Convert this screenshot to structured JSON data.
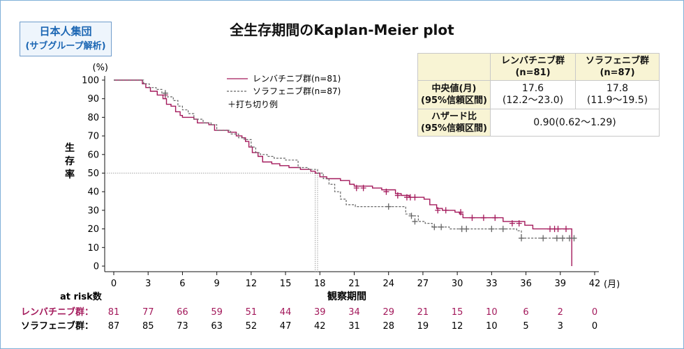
{
  "badge": {
    "line1": "日本人集団",
    "line2": "(サブグループ解析)"
  },
  "title": "全生存期間のKaplan-Meier plot",
  "table": {
    "columns": [
      "レンバチニブ群\n(n=81)",
      "ソラフェニブ群\n(n=87)"
    ],
    "median_label": "中央値(月)\n(95%信頼区間)",
    "median_values": [
      "17.6\n(12.2〜23.0)",
      "17.8\n(11.9〜19.5)"
    ],
    "hr_label": "ハザード比\n(95%信頼区間)",
    "hr_value": "0.90(0.62〜1.29)"
  },
  "legend": {
    "lenvatinib": "レンバチニブ群(n=81)",
    "sorafenib": "ソラフェニブ群(n=87)",
    "censor": "＋打ち切り例"
  },
  "risk": {
    "header": "at risk数",
    "lenvatinib_label": "レンバチニブ群：",
    "sorafenib_label": "ソラフェニブ群："
  },
  "colors": {
    "lenvatinib": "#a3195b",
    "sorafenib": "#666666",
    "table_bg": "#f8f4d4",
    "badge": "#1b66b3"
  },
  "chart_data": {
    "type": "line",
    "step": true,
    "xlabel": "観察期間",
    "xunit": "(月)",
    "ylabel": "生存率",
    "yunit": "(%)",
    "xlim": [
      0,
      42
    ],
    "ylim": [
      0,
      100
    ],
    "xticks": [
      0,
      3,
      6,
      9,
      12,
      15,
      18,
      21,
      24,
      27,
      30,
      33,
      36,
      39,
      42
    ],
    "yticks": [
      0,
      10,
      20,
      30,
      40,
      50,
      60,
      70,
      80,
      90,
      100
    ],
    "median_reference": {
      "y": 50,
      "x_lenvatinib": 17.6,
      "x_sorafenib": 17.8
    },
    "series": [
      {
        "name": "レンバチニブ群(n=81)",
        "style": "solid",
        "points": [
          [
            0,
            100
          ],
          [
            2.5,
            98
          ],
          [
            2.8,
            96
          ],
          [
            3.2,
            94
          ],
          [
            3.8,
            92
          ],
          [
            4.3,
            90
          ],
          [
            4.6,
            87
          ],
          [
            5.0,
            86
          ],
          [
            5.4,
            83
          ],
          [
            5.8,
            81
          ],
          [
            6.0,
            80
          ],
          [
            7.0,
            79
          ],
          [
            7.3,
            77
          ],
          [
            8.3,
            76
          ],
          [
            8.8,
            73
          ],
          [
            10.0,
            72
          ],
          [
            10.7,
            70
          ],
          [
            11.2,
            69
          ],
          [
            11.5,
            67
          ],
          [
            11.8,
            64
          ],
          [
            12.1,
            61
          ],
          [
            12.6,
            59
          ],
          [
            13.0,
            56
          ],
          [
            13.8,
            55
          ],
          [
            14.5,
            54
          ],
          [
            15.3,
            53
          ],
          [
            16.3,
            52
          ],
          [
            17.2,
            51
          ],
          [
            17.6,
            50
          ],
          [
            18.0,
            48
          ],
          [
            18.6,
            47
          ],
          [
            19.8,
            46
          ],
          [
            20.6,
            44
          ],
          [
            21.0,
            43
          ],
          [
            22.6,
            42
          ],
          [
            23.4,
            41
          ],
          [
            24.6,
            39
          ],
          [
            25.1,
            38
          ],
          [
            25.8,
            37
          ],
          [
            27.1,
            36
          ],
          [
            27.6,
            33
          ],
          [
            28.2,
            31
          ],
          [
            28.7,
            30
          ],
          [
            29.8,
            29
          ],
          [
            30.2,
            28
          ],
          [
            30.5,
            26
          ],
          [
            31.5,
            26
          ],
          [
            32.8,
            26
          ],
          [
            33.6,
            26
          ],
          [
            34.0,
            24
          ],
          [
            35.9,
            22
          ],
          [
            36.6,
            20
          ],
          [
            38.9,
            20
          ],
          [
            40.0,
            20
          ],
          [
            40.0,
            0
          ]
        ],
        "censored": [
          [
            4.5,
            92
          ],
          [
            21.2,
            42
          ],
          [
            21.8,
            42
          ],
          [
            23.8,
            40
          ],
          [
            24.8,
            38
          ],
          [
            25.6,
            37
          ],
          [
            25.9,
            37
          ],
          [
            26.3,
            37
          ],
          [
            28.3,
            30
          ],
          [
            29.0,
            30
          ],
          [
            30.3,
            29
          ],
          [
            31.3,
            26
          ],
          [
            32.3,
            26
          ],
          [
            33.3,
            26
          ],
          [
            34.8,
            23
          ],
          [
            35.4,
            23
          ],
          [
            38.1,
            20
          ],
          [
            38.5,
            20
          ],
          [
            38.8,
            20
          ],
          [
            39.5,
            20
          ]
        ]
      },
      {
        "name": "ソラフェニブ群(n=87)",
        "style": "dashed",
        "points": [
          [
            0,
            100
          ],
          [
            2.6,
            98
          ],
          [
            3.1,
            96
          ],
          [
            3.7,
            95
          ],
          [
            4.2,
            93
          ],
          [
            4.5,
            91
          ],
          [
            5.2,
            89
          ],
          [
            5.6,
            86
          ],
          [
            6.0,
            84
          ],
          [
            6.5,
            82
          ],
          [
            7.0,
            79
          ],
          [
            7.8,
            77
          ],
          [
            8.5,
            76
          ],
          [
            9.0,
            73
          ],
          [
            10.2,
            71
          ],
          [
            10.9,
            69
          ],
          [
            11.4,
            68
          ],
          [
            12.0,
            64
          ],
          [
            12.4,
            61
          ],
          [
            12.8,
            60
          ],
          [
            13.4,
            59
          ],
          [
            14.0,
            58
          ],
          [
            15.0,
            57
          ],
          [
            16.1,
            53
          ],
          [
            17.0,
            52
          ],
          [
            17.8,
            50
          ],
          [
            18.3,
            47
          ],
          [
            18.8,
            44
          ],
          [
            19.3,
            40
          ],
          [
            19.8,
            36
          ],
          [
            20.3,
            33
          ],
          [
            21.1,
            32
          ],
          [
            22.6,
            32
          ],
          [
            23.5,
            32
          ],
          [
            24.6,
            32
          ],
          [
            25.5,
            28
          ],
          [
            26.0,
            27
          ],
          [
            26.6,
            24
          ],
          [
            27.2,
            23
          ],
          [
            27.8,
            21
          ],
          [
            28.6,
            21
          ],
          [
            29.3,
            20
          ],
          [
            30.4,
            20
          ],
          [
            31.5,
            20
          ],
          [
            32.5,
            20
          ],
          [
            33.6,
            20
          ],
          [
            34.7,
            20
          ],
          [
            35.2,
            19
          ],
          [
            35.6,
            15
          ],
          [
            39.5,
            15
          ],
          [
            40.0,
            15
          ]
        ],
        "censored": [
          [
            4.5,
            93
          ],
          [
            24.0,
            32
          ],
          [
            26.0,
            27
          ],
          [
            26.3,
            24
          ],
          [
            28.0,
            21
          ],
          [
            28.6,
            21
          ],
          [
            30.4,
            20
          ],
          [
            30.8,
            20
          ],
          [
            33.0,
            20
          ],
          [
            34.0,
            20
          ],
          [
            35.6,
            15
          ],
          [
            37.5,
            15
          ],
          [
            38.7,
            15
          ],
          [
            39.2,
            15
          ],
          [
            39.8,
            15
          ],
          [
            40.2,
            15
          ]
        ]
      }
    ],
    "at_risk": {
      "times": [
        0,
        3,
        6,
        9,
        12,
        15,
        18,
        21,
        24,
        27,
        30,
        33,
        36,
        39,
        42
      ],
      "lenvatinib": [
        81,
        77,
        66,
        59,
        51,
        44,
        39,
        34,
        29,
        21,
        15,
        10,
        6,
        2,
        0
      ],
      "sorafenib": [
        87,
        85,
        73,
        63,
        52,
        47,
        42,
        31,
        28,
        19,
        12,
        10,
        5,
        3,
        0
      ]
    }
  }
}
